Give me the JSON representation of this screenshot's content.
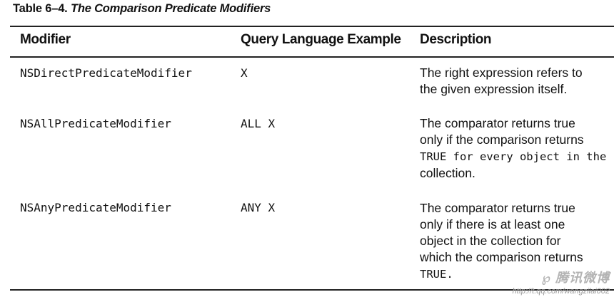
{
  "caption": {
    "label": "Table 6–4.",
    "title": "The Comparison Predicate Modifiers"
  },
  "table": {
    "headers": [
      "Modifier",
      "Query Language Example",
      "Description"
    ],
    "rows": [
      {
        "modifier": "NSDirectPredicateModifier",
        "example": "X",
        "description": [
          "The right expression refers to",
          "the given expression itself."
        ]
      },
      {
        "modifier": "NSAllPredicateModifier",
        "example": "ALL X",
        "description": [
          "The comparator returns true",
          "only if the comparison returns",
          "TRUE for every object in the",
          "collection."
        ]
      },
      {
        "modifier": "NSAnyPredicateModifier",
        "example": "ANY X",
        "description": [
          "The comparator returns true",
          "only if there is at least one",
          "object in the collection for",
          "which the comparison returns",
          "TRUE."
        ]
      }
    ]
  },
  "watermark": {
    "brand": "腾讯微博",
    "url": "http://t.qq.com/wangzilai002"
  }
}
